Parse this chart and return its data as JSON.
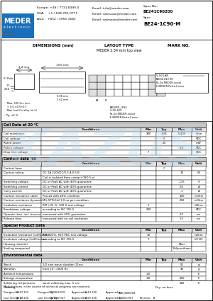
{
  "title": "BE24-1C90-M",
  "spec_no": "BE241C90200",
  "spec_label": "Spec:",
  "spec_no_label": "Spec No.:",
  "spec": "BE24-1C90-M",
  "company_color": "#1a6fba",
  "bg_color": "#ffffff",
  "watermark_color": "#b8d4ea",
  "coil_table_title": "Coil Data at 20 °C",
  "coil_rows": [
    [
      "Coil resistance",
      "",
      "300",
      "3.94",
      "5.400",
      "Ohm"
    ],
    [
      "Coil voltage",
      "",
      "",
      "5",
      "",
      "VDC"
    ],
    [
      "Rated power",
      "",
      "",
      "24",
      "",
      "mW"
    ],
    [
      "Pull-in voltage",
      "",
      "",
      "",
      "3.4",
      "VDC"
    ],
    [
      "Drop-Out voltage",
      "",
      "7",
      "",
      "",
      "VDC"
    ]
  ],
  "contact_table_title": "Contact data  90",
  "contact_rows": [
    [
      "Contact form",
      "",
      "",
      "C",
      "",
      ""
    ],
    [
      "Contact rating",
      "DC 2A 220VDC/0.5 A 0.5 B",
      "",
      "",
      "10",
      "W"
    ],
    [
      "",
      "Coil is isolated from contact (ISO 5-a)",
      "",
      "",
      "",
      ""
    ],
    [
      "Switching voltage",
      "DC or Peak AC with 40% guarantee",
      "",
      "",
      "1.75",
      "V"
    ],
    [
      "Switching current",
      "DC or Peak AC with 40% guarantee",
      "",
      "",
      "0.5",
      "A"
    ],
    [
      "Carry current",
      "DC or Peak AC with 40% guarantee",
      "",
      "",
      "1",
      "A"
    ],
    [
      "Contact resistance static",
      "Passed with 40% condition",
      "",
      "",
      "100",
      "mOhm"
    ],
    [
      "Contact resistance dynamic",
      "MIL-STD-Std 1.0 no per condition",
      "",
      "",
      "250",
      "mOhm"
    ],
    [
      "Insulation resistance",
      "RM +25 %, 100 V test voltage",
      "1",
      "",
      "",
      "GOhm"
    ],
    [
      "Breakdown voltage",
      "according to IEC 255-5",
      "200",
      "",
      "",
      "VDC"
    ],
    [
      "Operate time, incl. bounce",
      "measured with 40% guarantee",
      "",
      "",
      "0.7",
      "ms"
    ],
    [
      "Release time",
      "measured with no coil excitation",
      "",
      "",
      "1.5",
      "ms"
    ]
  ],
  "special_table_title": "Special Product Data",
  "special_rows": [
    [
      "Insulation resistance Coil/Contact",
      "RM +25%, 500 VDC test voltage",
      "10",
      "",
      "",
      "GOhm"
    ],
    [
      "Insulation voltage Coil/Contact",
      "according to IEC 255-5",
      "7",
      "",
      "",
      "kV DC"
    ],
    [
      "Housing material",
      "",
      "",
      "",
      "Macr",
      ""
    ],
    [
      "Sealing compound",
      "",
      "",
      "",
      "Polyurethane",
      ""
    ]
  ],
  "env_table_title": "Environmental data",
  "env_rows": [
    [
      "Shock",
      "1/2 sine wave duration 11ms",
      "",
      "",
      "50",
      "g"
    ],
    [
      "Vibration",
      "from 10 / 2000 Hz",
      "",
      "",
      "30",
      "g"
    ],
    [
      "Ambient temperature",
      "",
      "-20",
      "",
      "",
      "°C"
    ],
    [
      "Storage temperature",
      "",
      "-40",
      "",
      "200",
      "°C"
    ],
    [
      "Soldering temperature",
      "wave soldering max. 5 sec",
      "",
      "",
      "260",
      "°C"
    ],
    [
      "Cleaning",
      "",
      "",
      "Dry, no dust",
      "",
      ""
    ]
  ],
  "footer_text": "Modifications in the course of technical progress are reserved.",
  "footer_rows": [
    [
      "Designed at:",
      "04.07.193",
      "Designed by:",
      "00/00/24/CE",
      "Approved at:",
      "21.13.100",
      "Approved by:",
      "ACG_B090/94"
    ],
    [
      "Last Change at:",
      "09.07.100",
      "Last Change by:",
      "00/00/07/07",
      "Approved at:",
      "08.07.100",
      "Approved by:",
      "00/00/07/07",
      "Revision:",
      "14"
    ]
  ]
}
